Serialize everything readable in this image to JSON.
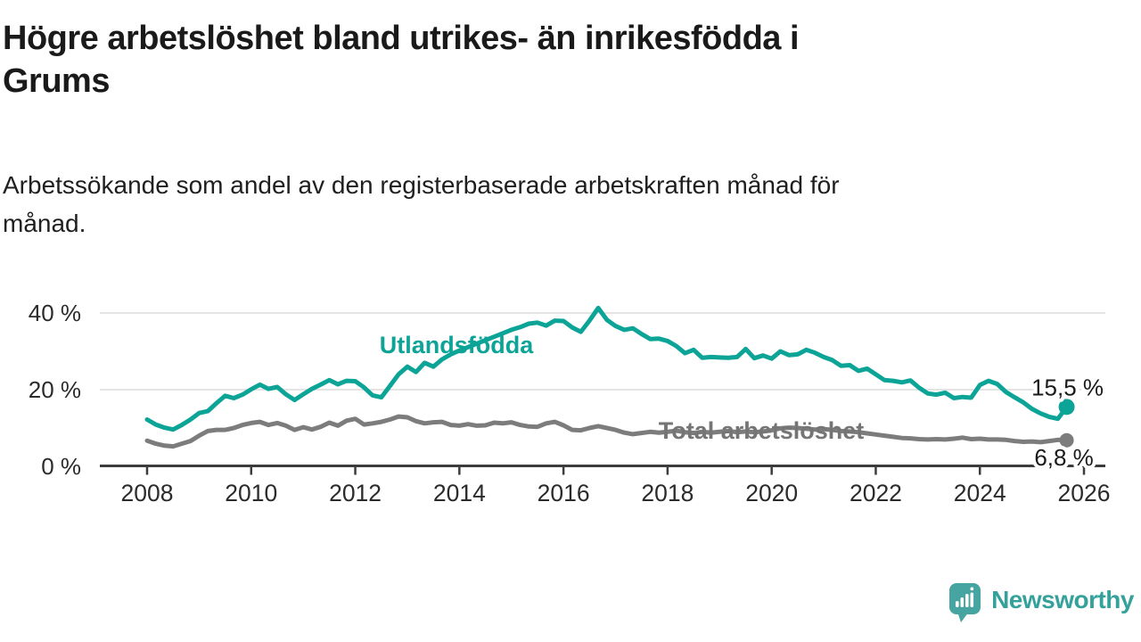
{
  "header": {
    "title": "Högre arbetslöshet bland utrikes- än inrikesfödda i\nGrums",
    "subtitle": "Arbetssökande som andel av den registerbaserade arbetskraften månad för\nmånad."
  },
  "footer": {
    "brand": "Newsworthy",
    "logo_icon": "speech-bubble-bar-chart-icon"
  },
  "colors": {
    "foreign_series": "#0da498",
    "total_series": "#7c7c7c",
    "total_label_text": "#757575",
    "title_text": "#1a1a1a",
    "axis_text": "#2b2b2b",
    "end_label_text": "#1a1a1a",
    "gridline": "#dcdcdc",
    "axis_line": "#3c3c3c",
    "logo_teal": "#46a5a0",
    "logo_text_teal": "#35a19b",
    "background": "#ffffff"
  },
  "chart_data": {
    "type": "line",
    "title": "Högre arbetslöshet bland utrikes- än inrikesfödda i Grums",
    "subtitle": "Arbetssökande som andel av den registerbaserade arbetskraften månad för månad.",
    "xlabel": "",
    "ylabel": "",
    "x_unit": "year (monthly data)",
    "y_unit": "percent",
    "x_start": 2008.0,
    "x_end": 2025.667,
    "x_step": 0.16667,
    "xlim": [
      2007.1,
      2026.4
    ],
    "ylim": [
      0,
      44
    ],
    "grid": "horizontal",
    "legend": "inline-labels",
    "x_ticks": [
      2008,
      2010,
      2012,
      2014,
      2016,
      2018,
      2020,
      2022,
      2024,
      2026
    ],
    "y_ticks": [
      {
        "value": 0,
        "label": "0 %"
      },
      {
        "value": 20,
        "label": "20 %"
      },
      {
        "value": 40,
        "label": "40 %"
      }
    ],
    "series": [
      {
        "name": "Utlandsfödda",
        "color": "#0da498",
        "end_label": "15,5 %",
        "end_value": 15.5,
        "values": [
          12.2,
          10.9,
          10.1,
          9.6,
          10.8,
          12.2,
          13.9,
          14.4,
          16.5,
          18.4,
          17.8,
          18.7,
          20.1,
          21.3,
          20.2,
          20.7,
          18.8,
          17.3,
          18.8,
          20.2,
          21.3,
          22.5,
          21.4,
          22.3,
          22.2,
          20.6,
          18.5,
          18.0,
          21.0,
          24.0,
          26.0,
          24.6,
          27.0,
          26.0,
          27.9,
          29.2,
          30.2,
          31.1,
          32.0,
          32.9,
          33.8,
          34.7,
          35.6,
          36.3,
          37.2,
          37.5,
          36.7,
          38.0,
          37.9,
          36.2,
          35.1,
          38.0,
          41.3,
          38.2,
          36.6,
          35.6,
          36.0,
          34.5,
          33.2,
          33.3,
          32.7,
          31.4,
          29.5,
          30.4,
          28.3,
          28.5,
          28.4,
          28.3,
          28.5,
          30.6,
          28.2,
          28.9,
          28.1,
          30.0,
          29.0,
          29.2,
          30.4,
          29.6,
          28.5,
          27.7,
          26.2,
          26.4,
          24.9,
          25.5,
          24.0,
          22.5,
          22.3,
          21.9,
          22.4,
          20.5,
          19.0,
          18.7,
          19.2,
          17.8,
          18.1,
          17.9,
          21.2,
          22.3,
          21.5,
          19.4,
          18.0,
          16.7,
          15.0,
          13.8,
          12.9,
          12.4,
          15.5
        ]
      },
      {
        "name": "Total arbetslöshet",
        "color": "#7c7c7c",
        "end_label": "6,8 %",
        "end_value": 6.8,
        "values": [
          6.7,
          5.9,
          5.4,
          5.2,
          5.9,
          6.6,
          8.0,
          9.2,
          9.5,
          9.5,
          10.0,
          10.8,
          11.3,
          11.6,
          10.8,
          11.3,
          10.6,
          9.5,
          10.2,
          9.6,
          10.3,
          11.4,
          10.6,
          11.9,
          12.4,
          10.9,
          11.2,
          11.6,
          12.2,
          13.0,
          12.8,
          11.8,
          11.2,
          11.5,
          11.6,
          10.8,
          10.6,
          11.0,
          10.6,
          10.7,
          11.4,
          11.2,
          11.5,
          10.8,
          10.4,
          10.3,
          11.2,
          11.6,
          10.7,
          9.5,
          9.4,
          10.0,
          10.5,
          10.0,
          9.5,
          8.8,
          8.4,
          8.7,
          9.0,
          8.8,
          9.0,
          9.3,
          8.9,
          8.7,
          9.0,
          8.8,
          9.0,
          9.2,
          8.9,
          9.1,
          8.9,
          9.1,
          9.4,
          9.9,
          10.1,
          10.0,
          9.8,
          9.6,
          9.7,
          9.5,
          9.2,
          9.1,
          8.9,
          8.6,
          8.3,
          8.0,
          7.7,
          7.4,
          7.3,
          7.1,
          7.0,
          7.1,
          7.0,
          7.2,
          7.5,
          7.1,
          7.2,
          7.0,
          7.0,
          6.9,
          6.6,
          6.4,
          6.5,
          6.3,
          6.6,
          6.9,
          6.8
        ]
      }
    ]
  }
}
